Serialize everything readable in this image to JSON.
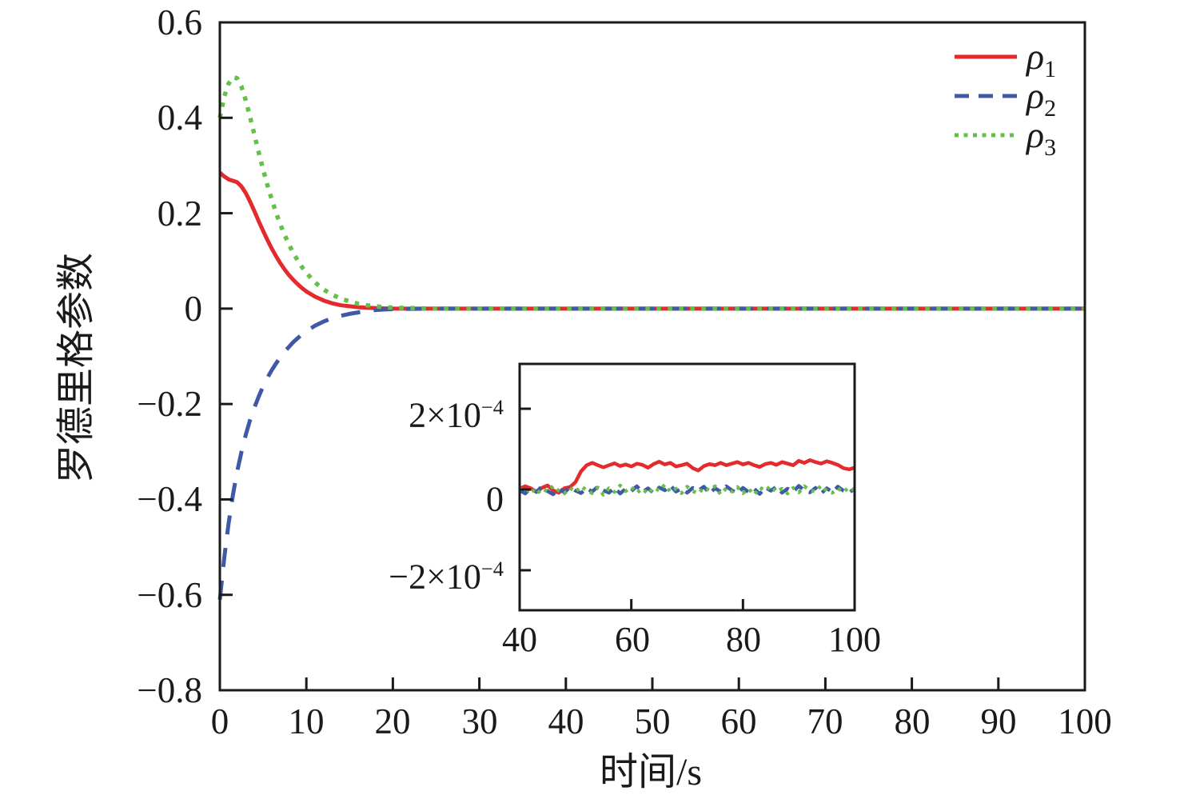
{
  "figure": {
    "background": "#ffffff",
    "axis_color": "#1a1a1a"
  },
  "chart_data": {
    "type": "line",
    "title": "",
    "xlabel": "时间/s",
    "ylabel": "罗德里格参数",
    "grid": false,
    "main": {
      "xlim": [
        0,
        100
      ],
      "ylim": [
        -0.8,
        0.6
      ],
      "xticks": [
        0,
        10,
        20,
        30,
        40,
        50,
        60,
        70,
        80,
        90,
        100
      ],
      "xtick_labels": [
        "0",
        "10",
        "20",
        "30",
        "40",
        "50",
        "60",
        "70",
        "80",
        "90",
        "100"
      ],
      "yticks": [
        0.6,
        0.4,
        0.2,
        0,
        -0.2,
        -0.4,
        -0.6,
        -0.8
      ],
      "ytick_labels": [
        "0.6",
        "0.4",
        "0.2",
        "0",
        "−0.2",
        "−0.4",
        "−0.6",
        "−0.8"
      ],
      "series": [
        {
          "name": "rho1",
          "label": "ρ1",
          "color": "#e42a2c",
          "style": "solid",
          "x": [
            0,
            0.5,
            1,
            1.5,
            2,
            2.5,
            3,
            3.5,
            4,
            4.5,
            5,
            5.5,
            6,
            6.5,
            7,
            7.5,
            8,
            8.5,
            9,
            9.5,
            10,
            11,
            12,
            13,
            14,
            15,
            16,
            17,
            18,
            19,
            20,
            25,
            30,
            40,
            60,
            80,
            100
          ],
          "y": [
            0.285,
            0.277,
            0.271,
            0.268,
            0.265,
            0.256,
            0.242,
            0.224,
            0.204,
            0.183,
            0.163,
            0.144,
            0.126,
            0.11,
            0.095,
            0.082,
            0.07,
            0.06,
            0.051,
            0.043,
            0.036,
            0.025,
            0.017,
            0.011,
            0.007,
            0.005,
            0.003,
            0.002,
            0.001,
            0.0005,
            0,
            0,
            0,
            0,
            0,
            0,
            0
          ]
        },
        {
          "name": "rho2",
          "label": "ρ2",
          "color": "#4059a6",
          "style": "dashed",
          "x": [
            0,
            0.5,
            1,
            1.5,
            2,
            2.5,
            3,
            3.5,
            4,
            4.5,
            5,
            5.5,
            6,
            6.5,
            7,
            7.5,
            8,
            8.5,
            9,
            9.5,
            10,
            11,
            12,
            13,
            14,
            15,
            16,
            17,
            18,
            19,
            20,
            25,
            30,
            40,
            60,
            80,
            100
          ],
          "y": [
            -0.61,
            -0.524,
            -0.452,
            -0.392,
            -0.342,
            -0.3,
            -0.264,
            -0.233,
            -0.207,
            -0.184,
            -0.163,
            -0.145,
            -0.129,
            -0.115,
            -0.102,
            -0.09,
            -0.08,
            -0.07,
            -0.062,
            -0.054,
            -0.047,
            -0.036,
            -0.027,
            -0.02,
            -0.015,
            -0.011,
            -0.008,
            -0.005,
            -0.003,
            -0.002,
            -0.001,
            0,
            0,
            0,
            0,
            0,
            0
          ]
        },
        {
          "name": "rho3",
          "label": "ρ3",
          "color": "#64bf4b",
          "style": "dotted",
          "x": [
            0,
            0.5,
            1,
            1.5,
            2,
            2.5,
            3,
            3.5,
            4,
            4.5,
            5,
            5.5,
            6,
            6.5,
            7,
            7.5,
            8,
            8.5,
            9,
            9.5,
            10,
            11,
            12,
            13,
            14,
            15,
            16,
            17,
            18,
            19,
            20,
            25,
            30,
            40,
            60,
            80,
            100
          ],
          "y": [
            0.4,
            0.444,
            0.471,
            0.485,
            0.483,
            0.465,
            0.436,
            0.401,
            0.364,
            0.327,
            0.292,
            0.259,
            0.229,
            0.201,
            0.176,
            0.154,
            0.134,
            0.116,
            0.101,
            0.087,
            0.075,
            0.055,
            0.04,
            0.029,
            0.021,
            0.015,
            0.01,
            0.007,
            0.005,
            0.003,
            0.002,
            0,
            0,
            0,
            0,
            0,
            0
          ]
        }
      ]
    },
    "inset": {
      "xlim": [
        40,
        100
      ],
      "ylim_e4": [
        -2.99,
        3.11
      ],
      "unit": "1e-4",
      "xticks": [
        40,
        60,
        80,
        100
      ],
      "xtick_labels": [
        "40",
        "60",
        "80",
        "100"
      ],
      "ytick_values_e4": [
        2,
        0,
        -2
      ],
      "ytick_labels": [
        {
          "coef": "2×10",
          "exp": "−4"
        },
        {
          "coef": "0",
          "exp": ""
        },
        {
          "coef": "−2×10",
          "exp": "−4"
        }
      ],
      "x_start": 40,
      "x_step": 1,
      "series_e4": [
        {
          "name": "rho1",
          "color": "#e42a2c",
          "style": "solid",
          "values": [
            0.02,
            0.08,
            0.03,
            -0.06,
            0.04,
            0.1,
            -0.02,
            -0.08,
            0.03,
            0.06,
            0.18,
            0.45,
            0.6,
            0.66,
            0.6,
            0.55,
            0.6,
            0.65,
            0.58,
            0.62,
            0.57,
            0.64,
            0.61,
            0.54,
            0.63,
            0.69,
            0.62,
            0.66,
            0.57,
            0.6,
            0.64,
            0.53,
            0.47,
            0.58,
            0.63,
            0.6,
            0.66,
            0.6,
            0.64,
            0.68,
            0.62,
            0.66,
            0.6,
            0.56,
            0.63,
            0.66,
            0.61,
            0.68,
            0.64,
            0.6,
            0.71,
            0.66,
            0.73,
            0.68,
            0.64,
            0.7,
            0.66,
            0.61,
            0.53,
            0.5,
            0.54
          ]
        },
        {
          "name": "rho2",
          "color": "#4059a6",
          "style": "dashed",
          "values": [
            -0.02,
            -0.1,
            0.04,
            -0.06,
            0.08,
            -0.04,
            -0.12,
            0.02,
            -0.07,
            0.05,
            -0.03,
            -0.09,
            0.03,
            -0.05,
            0.07,
            -0.02,
            -0.08,
            0.04,
            -0.1,
            0.02,
            -0.04,
            0.08,
            -0.06,
            0.03,
            -0.09,
            0.05,
            -0.02,
            0.1,
            -0.05,
            0.02,
            -0.08,
            0.04,
            -0.03,
            0.07,
            -0.1,
            0.03,
            -0.05,
            0.08,
            -0.02,
            -0.09,
            0.04,
            -0.06,
            0.02,
            -0.11,
            0.05,
            -0.03,
            0.07,
            -0.08,
            0.02,
            -0.05,
            0.09,
            -0.02,
            -0.07,
            0.04,
            -0.1,
            0.03,
            -0.06,
            0.07,
            -0.03,
            -0.08,
            0.02
          ]
        },
        {
          "name": "rho3",
          "color": "#64bf4b",
          "style": "dotted",
          "values": [
            0.03,
            -0.07,
            0.05,
            -0.12,
            0.02,
            -0.05,
            0.09,
            -0.03,
            -0.1,
            0.04,
            -0.06,
            0.08,
            -0.02,
            -0.09,
            0.05,
            -0.13,
            0.03,
            -0.06,
            0.1,
            -0.04,
            0.06,
            -0.08,
            0.02,
            -0.11,
            0.05,
            -0.03,
            0.12,
            -0.06,
            0.02,
            -0.09,
            0.07,
            -0.04,
            -0.1,
            0.05,
            -0.02,
            0.08,
            -0.12,
            0.03,
            -0.05,
            0.06,
            -0.09,
            0.02,
            -0.13,
            0.05,
            -0.03,
            0.09,
            -0.06,
            0.02,
            -0.1,
            0.04,
            -0.07,
            0.08,
            -0.02,
            -0.05,
            0.1,
            -0.04,
            -0.08,
            0.03,
            -0.06,
            0.05,
            -0.02
          ]
        }
      ]
    },
    "legend": {
      "position": "top-right",
      "frame": false,
      "items": [
        {
          "symbol": "ρ",
          "sub": "1"
        },
        {
          "symbol": "ρ",
          "sub": "2"
        },
        {
          "symbol": "ρ",
          "sub": "3"
        }
      ]
    }
  }
}
